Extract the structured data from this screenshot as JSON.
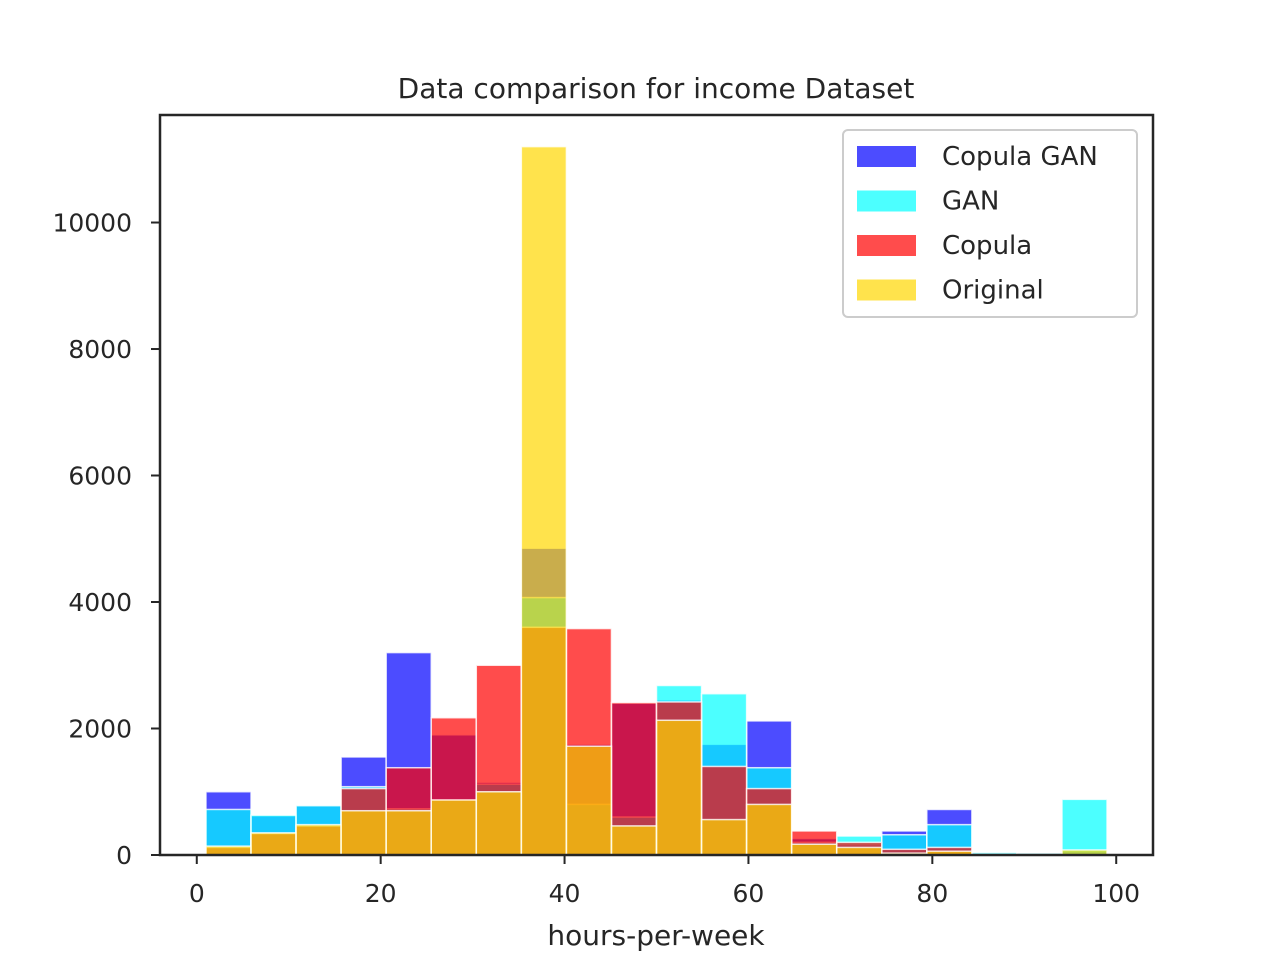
{
  "chart_data": {
    "type": "bar",
    "title": "Data comparison for income Dataset",
    "xlabel": "hours-per-week",
    "ylabel": "",
    "xlim": [
      -4,
      104
    ],
    "ylim": [
      0,
      11700
    ],
    "x_ticks": [
      0,
      20,
      40,
      60,
      80,
      100
    ],
    "y_ticks": [
      0,
      2000,
      4000,
      6000,
      8000,
      10000
    ],
    "bin_edges": [
      1,
      5.9,
      10.8,
      15.7,
      20.6,
      25.5,
      30.4,
      35.3,
      40.2,
      45.1,
      50,
      54.9,
      59.8,
      64.7,
      69.6,
      74.5,
      79.4,
      84.3,
      89.2,
      94.1,
      99
    ],
    "legend_position": "upper-right",
    "grid": false,
    "series": [
      {
        "name": "Copula GAN",
        "color": "#0000ff",
        "opacity": 0.7,
        "values": [
          1000,
          620,
          780,
          1550,
          3200,
          1900,
          1150,
          4850,
          1750,
          2400,
          2450,
          1750,
          2120,
          260,
          160,
          380,
          720,
          30,
          30,
          60
        ]
      },
      {
        "name": "GAN",
        "color": "#00ffff",
        "opacity": 0.7,
        "values": [
          720,
          630,
          780,
          1080,
          730,
          870,
          1120,
          4070,
          800,
          600,
          2680,
          2550,
          1380,
          200,
          300,
          320,
          480,
          40,
          30,
          880
        ]
      },
      {
        "name": "Copula",
        "color": "#ff0000",
        "opacity": 0.7,
        "values": [
          120,
          340,
          460,
          1050,
          1380,
          2170,
          3000,
          3600,
          3580,
          2410,
          2420,
          1400,
          1050,
          380,
          200,
          90,
          120,
          10,
          0,
          0
        ]
      },
      {
        "name": "Original",
        "color": "#ffd700",
        "opacity": 0.7,
        "values": [
          140,
          350,
          480,
          700,
          700,
          870,
          1000,
          11200,
          1720,
          460,
          2130,
          560,
          800,
          170,
          120,
          30,
          60,
          10,
          10,
          80
        ]
      }
    ]
  }
}
